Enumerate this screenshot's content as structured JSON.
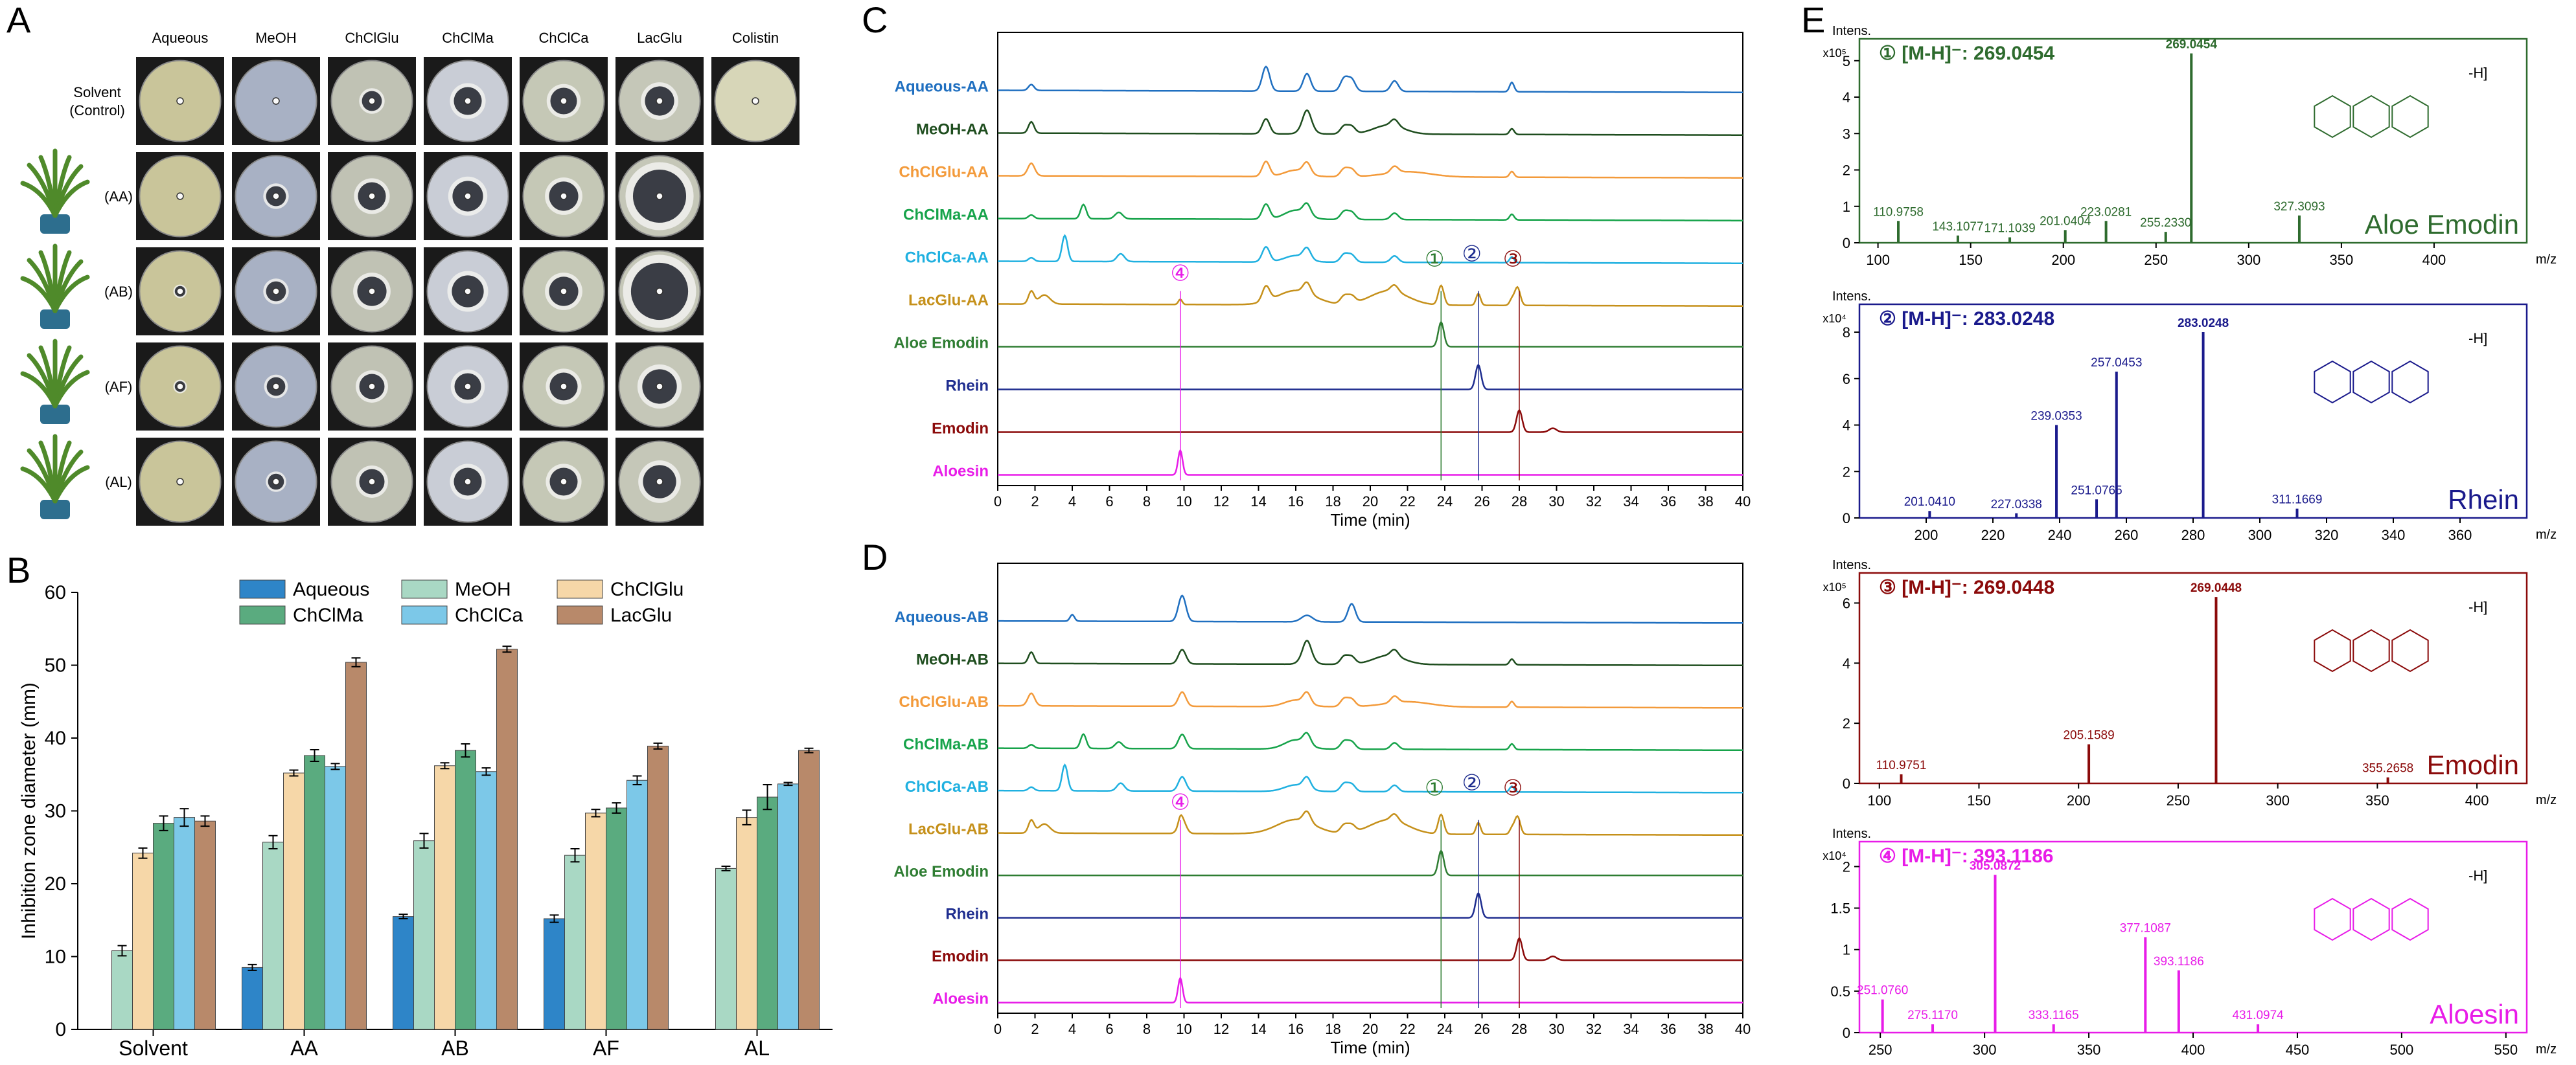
{
  "panel_letters": [
    "A",
    "B",
    "C",
    "D",
    "E"
  ],
  "colors": {
    "aqueous": "#2e85c8",
    "meoh": "#a9d8c4",
    "chclglu": "#f6d7a8",
    "chclma": "#5aab7f",
    "chclca": "#7cc8e8",
    "lacglu": "#b8896a",
    "trace_aqueous": "#1f6fc0",
    "trace_meoh": "#1e4d1e",
    "trace_chclglu": "#f39a3a",
    "trace_chclma": "#16a34a",
    "trace_chclca": "#1fb0e0",
    "trace_lacglu": "#c5901a",
    "trace_aloe_emodin": "#2e7d32",
    "trace_rhein": "#1e2d8f",
    "trace_emodin": "#8b0a0a",
    "trace_aloesin": "#e81ce8"
  },
  "panel_a": {
    "column_labels": [
      "Aqueous",
      "MeOH",
      "ChClGlu",
      "ChClMa",
      "ChClCa",
      "LacGlu",
      "Colistin"
    ],
    "row_labels": [
      "Solvent\n(Control)",
      "(AA)",
      "(AB)",
      "(AF)",
      "(AL)"
    ],
    "plate_images": "plate-photo-icon",
    "plant_images": "aloe-plant-icon"
  },
  "chart_data": [
    {
      "type": "bar",
      "title": "",
      "ylabel": "Inhibition zone diameter (mm)",
      "xlabel": "",
      "categories": [
        "Solvent",
        "AA",
        "AB",
        "AF",
        "AL"
      ],
      "ylim": [
        0,
        60
      ],
      "yticks": [
        0,
        10,
        20,
        30,
        40,
        50,
        60
      ],
      "legend_position": "top",
      "series": [
        {
          "name": "Aqueous",
          "values": [
            0,
            8.5,
            15.5,
            15.2,
            0
          ],
          "errors": [
            0,
            0.4,
            0.3,
            0.5,
            0
          ]
        },
        {
          "name": "MeOH",
          "values": [
            10.8,
            25.7,
            25.9,
            23.9,
            22.1
          ],
          "errors": [
            0.7,
            0.9,
            1.0,
            0.9,
            0.3
          ]
        },
        {
          "name": "ChClGlu",
          "values": [
            24.2,
            35.2,
            36.2,
            29.7,
            29.1
          ],
          "errors": [
            0.7,
            0.4,
            0.4,
            0.5,
            1.0
          ]
        },
        {
          "name": "ChClMa",
          "values": [
            28.3,
            37.6,
            38.3,
            30.4,
            31.9
          ],
          "errors": [
            1.0,
            0.8,
            0.9,
            0.7,
            1.7
          ]
        },
        {
          "name": "ChClCa",
          "values": [
            29.1,
            36.1,
            35.4,
            34.2,
            33.7
          ],
          "errors": [
            1.2,
            0.4,
            0.5,
            0.6,
            0.2
          ]
        },
        {
          "name": "LacGlu",
          "values": [
            28.6,
            50.4,
            52.2,
            38.9,
            38.3
          ],
          "errors": [
            0.7,
            0.6,
            0.4,
            0.4,
            0.3
          ]
        }
      ]
    },
    {
      "type": "line",
      "panel": "C",
      "xlabel": "Time (min)",
      "xlim": [
        0,
        40
      ],
      "xticks": [
        0,
        2,
        4,
        6,
        8,
        10,
        12,
        14,
        16,
        18,
        20,
        22,
        24,
        26,
        28,
        30,
        32,
        34,
        36,
        38,
        40
      ],
      "series_labels": [
        "Aqueous-AA",
        "MeOH-AA",
        "ChClGlu-AA",
        "ChClMa-AA",
        "ChClCa-AA",
        "LacGlu-AA",
        "Aloe Emodin",
        "Rhein",
        "Emodin",
        "Aloesin"
      ],
      "markers": [
        {
          "label": "④",
          "x": 9.8
        },
        {
          "label": "①",
          "x": 23.8
        },
        {
          "label": "②",
          "x": 25.8
        },
        {
          "label": "③",
          "x": 28.0
        }
      ]
    },
    {
      "type": "line",
      "panel": "D",
      "xlabel": "Time (min)",
      "xlim": [
        0,
        40
      ],
      "xticks": [
        0,
        2,
        4,
        6,
        8,
        10,
        12,
        14,
        16,
        18,
        20,
        22,
        24,
        26,
        28,
        30,
        32,
        34,
        36,
        38,
        40
      ],
      "series_labels": [
        "Aqueous-AB",
        "MeOH-AB",
        "ChClGlu-AB",
        "ChClMa-AB",
        "ChClCa-AB",
        "LacGlu-AB",
        "Aloe Emodin",
        "Rhein",
        "Emodin",
        "Aloesin"
      ],
      "markers": [
        {
          "label": "④",
          "x": 9.8
        },
        {
          "label": "①",
          "x": 23.8
        },
        {
          "label": "②",
          "x": 25.8
        },
        {
          "label": "③",
          "x": 28.0
        }
      ]
    }
  ],
  "panel_e": {
    "intens_label": "Intens.",
    "mz_label": "m/z",
    "spectra": [
      {
        "header": "① [M-H]⁻: 269.0454",
        "compound": "Aloe Emodin",
        "exp": "x10⁵",
        "color": "#2e6b2e",
        "xlim": [
          90,
          450
        ],
        "xticks": [
          100,
          150,
          200,
          250,
          300,
          350,
          400
        ],
        "yticks": [
          0,
          1,
          2,
          3,
          4,
          5
        ],
        "ymax": 5.6,
        "peaks": [
          {
            "mz": 110.9758,
            "y": 0.6,
            "label": "110.9758"
          },
          {
            "mz": 143.1077,
            "y": 0.2,
            "label": "143.1077"
          },
          {
            "mz": 171.1039,
            "y": 0.15,
            "label": "171.1039"
          },
          {
            "mz": 201.0404,
            "y": 0.35,
            "label": "201.0404"
          },
          {
            "mz": 223.0281,
            "y": 0.6,
            "label": "223.0281"
          },
          {
            "mz": 255.233,
            "y": 0.3,
            "label": "255.2330"
          },
          {
            "mz": 269.0454,
            "y": 5.2,
            "label": "269.0454"
          },
          {
            "mz": 327.3093,
            "y": 0.75,
            "label": "327.3093"
          }
        ]
      },
      {
        "header": "② [M-H]⁻: 283.0248",
        "compound": "Rhein",
        "exp": "x10⁴",
        "color": "#1a1a8c",
        "xlim": [
          180,
          380
        ],
        "xticks": [
          200,
          220,
          240,
          260,
          280,
          300,
          320,
          340,
          360
        ],
        "yticks": [
          0,
          2,
          4,
          6,
          8
        ],
        "ymax": 9.2,
        "peaks": [
          {
            "mz": 201.041,
            "y": 0.3,
            "label": "201.0410"
          },
          {
            "mz": 227.0338,
            "y": 0.2,
            "label": "227.0338"
          },
          {
            "mz": 239.0353,
            "y": 4.0,
            "label": "239.0353"
          },
          {
            "mz": 251.0765,
            "y": 0.8,
            "label": "251.0765"
          },
          {
            "mz": 257.0453,
            "y": 6.3,
            "label": "257.0453"
          },
          {
            "mz": 283.0248,
            "y": 8.0,
            "label": "283.0248"
          },
          {
            "mz": 311.1669,
            "y": 0.4,
            "label": "311.1669"
          }
        ]
      },
      {
        "header": "③ [M-H]⁻: 269.0448",
        "compound": "Emodin",
        "exp": "x10⁵",
        "color": "#8b0a0a",
        "xlim": [
          90,
          425
        ],
        "xticks": [
          100,
          150,
          200,
          250,
          300,
          350,
          400
        ],
        "yticks": [
          0,
          2,
          4,
          6
        ],
        "ymax": 7.0,
        "peaks": [
          {
            "mz": 110.9751,
            "y": 0.3,
            "label": "110.9751"
          },
          {
            "mz": 205.1589,
            "y": 1.3,
            "label": "205.1589"
          },
          {
            "mz": 269.0448,
            "y": 6.2,
            "label": "269.0448"
          },
          {
            "mz": 355.2658,
            "y": 0.2,
            "label": "355.2658"
          }
        ]
      },
      {
        "header": "④ [M-H]⁻: 393.1186",
        "compound": "Aloesin",
        "exp": "x10⁴",
        "color": "#e81ce8",
        "xlim": [
          240,
          560
        ],
        "xticks": [
          250,
          300,
          350,
          400,
          450,
          500,
          550
        ],
        "yticks": [
          0,
          0.5,
          1,
          1.5,
          2
        ],
        "ymax": 2.3,
        "peaks": [
          {
            "mz": 251.076,
            "y": 0.4,
            "label": "251.0760"
          },
          {
            "mz": 275.117,
            "y": 0.1,
            "label": "275.1170"
          },
          {
            "mz": 305.0872,
            "y": 1.9,
            "label": "305.0872"
          },
          {
            "mz": 333.1165,
            "y": 0.1,
            "label": "333.1165"
          },
          {
            "mz": 377.1087,
            "y": 1.15,
            "label": "377.1087"
          },
          {
            "mz": 393.1186,
            "y": 0.75,
            "label": "393.1186"
          },
          {
            "mz": 431.0974,
            "y": 0.1,
            "label": "431.0974"
          }
        ]
      }
    ]
  }
}
